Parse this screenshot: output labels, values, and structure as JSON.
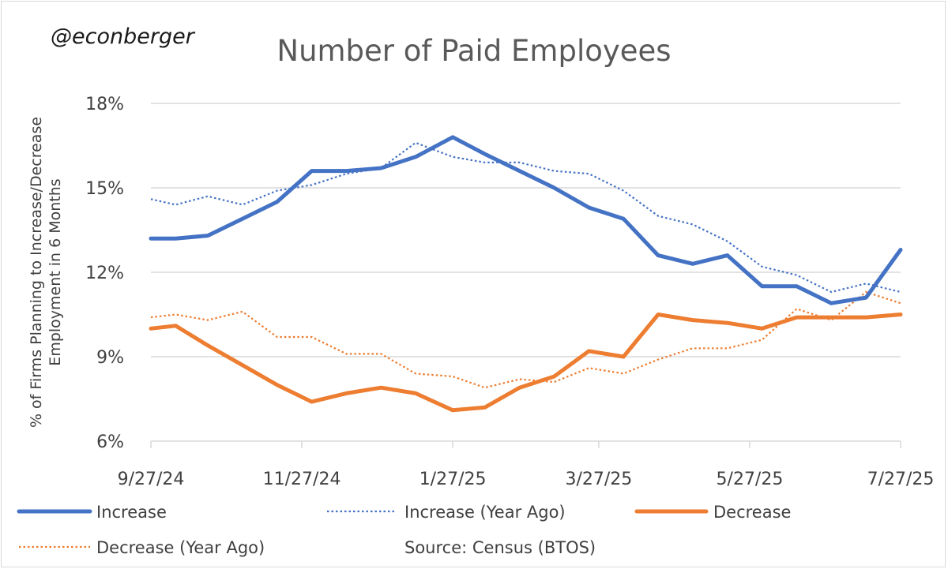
{
  "handle": "@econberger",
  "source": "Source: Census (BTOS)",
  "colors": {
    "increase": "#4472c4",
    "decrease": "#ed7d31",
    "grid": "#d9d9d9",
    "text": "#404040"
  },
  "chart_data": {
    "type": "line",
    "title": "Number of Paid Employees",
    "ylabel_lines": [
      "% of Firms Planning to Increase/Decrease",
      "Employment in 6 Months"
    ],
    "xlabel": "",
    "ylim": [
      6,
      18
    ],
    "yticks": [
      6,
      9,
      12,
      15,
      18
    ],
    "ytick_labels": [
      "6%",
      "9%",
      "12%",
      "15%",
      "18%"
    ],
    "xlim": [
      "2024-09-27",
      "2025-07-27"
    ],
    "xticks": [
      "2024-09-27",
      "2024-11-27",
      "2025-01-27",
      "2025-03-27",
      "2025-05-27",
      "2025-07-27"
    ],
    "xtick_labels": [
      "9/27/24",
      "11/27/24",
      "1/27/25",
      "3/27/25",
      "5/27/25",
      "7/27/25"
    ],
    "grid": "horizontal",
    "legend_position": "bottom",
    "series": [
      {
        "name": "Increase",
        "style": "solid",
        "color": "#4472c4",
        "x": [
          "2024-09-27",
          "2024-10-07",
          "2024-10-20",
          "2024-11-03",
          "2024-11-17",
          "2024-12-01",
          "2024-12-15",
          "2024-12-29",
          "2025-01-12",
          "2025-01-27",
          "2025-02-09",
          "2025-02-23",
          "2025-03-09",
          "2025-03-23",
          "2025-04-06",
          "2025-04-20",
          "2025-05-04",
          "2025-05-18",
          "2025-06-01",
          "2025-06-15",
          "2025-06-29",
          "2025-07-13",
          "2025-07-27"
        ],
        "y": [
          13.2,
          13.2,
          13.3,
          13.9,
          14.5,
          15.6,
          15.6,
          15.7,
          16.1,
          16.8,
          16.2,
          15.6,
          15.0,
          14.3,
          13.9,
          12.6,
          12.3,
          12.6,
          11.5,
          11.5,
          10.9,
          11.1,
          12.8
        ]
      },
      {
        "name": "Increase (Year Ago)",
        "style": "dotted",
        "color": "#4472c4",
        "x": [
          "2024-09-27",
          "2024-10-07",
          "2024-10-20",
          "2024-11-03",
          "2024-11-17",
          "2024-12-01",
          "2024-12-15",
          "2024-12-29",
          "2025-01-12",
          "2025-01-27",
          "2025-02-09",
          "2025-02-23",
          "2025-03-09",
          "2025-03-23",
          "2025-04-06",
          "2025-04-20",
          "2025-05-04",
          "2025-05-18",
          "2025-06-01",
          "2025-06-15",
          "2025-06-29",
          "2025-07-13",
          "2025-07-27"
        ],
        "y": [
          14.6,
          14.4,
          14.7,
          14.4,
          14.9,
          15.1,
          15.5,
          15.7,
          16.6,
          16.1,
          15.9,
          15.9,
          15.6,
          15.5,
          14.9,
          14.0,
          13.7,
          13.1,
          12.2,
          11.9,
          11.3,
          11.6,
          11.3
        ]
      },
      {
        "name": "Decrease",
        "style": "solid",
        "color": "#ed7d31",
        "x": [
          "2024-09-27",
          "2024-10-07",
          "2024-10-20",
          "2024-11-03",
          "2024-11-17",
          "2024-12-01",
          "2024-12-15",
          "2024-12-29",
          "2025-01-12",
          "2025-01-27",
          "2025-02-09",
          "2025-02-23",
          "2025-03-09",
          "2025-03-23",
          "2025-04-06",
          "2025-04-20",
          "2025-05-04",
          "2025-05-18",
          "2025-06-01",
          "2025-06-15",
          "2025-06-29",
          "2025-07-13",
          "2025-07-27"
        ],
        "y": [
          10.0,
          10.1,
          9.4,
          8.7,
          8.0,
          7.4,
          7.7,
          7.9,
          7.7,
          7.1,
          7.2,
          7.9,
          8.3,
          9.2,
          9.0,
          10.5,
          10.3,
          10.2,
          10.0,
          10.4,
          10.4,
          10.4,
          10.5
        ]
      },
      {
        "name": "Decrease (Year Ago)",
        "style": "dotted",
        "color": "#ed7d31",
        "x": [
          "2024-09-27",
          "2024-10-07",
          "2024-10-20",
          "2024-11-03",
          "2024-11-17",
          "2024-12-01",
          "2024-12-15",
          "2024-12-29",
          "2025-01-12",
          "2025-01-27",
          "2025-02-09",
          "2025-02-23",
          "2025-03-09",
          "2025-03-23",
          "2025-04-06",
          "2025-04-20",
          "2025-05-04",
          "2025-05-18",
          "2025-06-01",
          "2025-06-15",
          "2025-06-29",
          "2025-07-13",
          "2025-07-27"
        ],
        "y": [
          10.4,
          10.5,
          10.3,
          10.6,
          9.7,
          9.7,
          9.1,
          9.1,
          8.4,
          8.3,
          7.9,
          8.2,
          8.1,
          8.6,
          8.4,
          8.9,
          9.3,
          9.3,
          9.6,
          10.7,
          10.3,
          11.3,
          10.9
        ]
      }
    ]
  }
}
